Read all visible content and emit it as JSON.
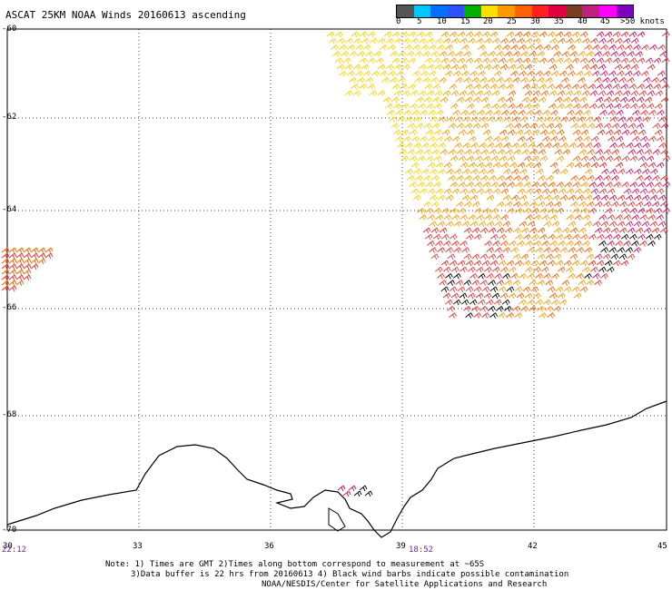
{
  "title": "ASCAT 25KM NOAA Winds 20160613 ascending",
  "legend": {
    "labels": [
      "0",
      "5",
      "10",
      "15",
      "20",
      "25",
      "30",
      "35",
      "40",
      "45",
      ">50 knots"
    ],
    "colors": [
      "#555555",
      "#00c8ff",
      "#0070ff",
      "#3050ff",
      "#00b000",
      "#ffe000",
      "#ff9900",
      "#ff6000",
      "#ff2020",
      "#e00040",
      "#7a3d1e",
      "#c02080",
      "#ff00ff",
      "#8000c0"
    ]
  },
  "lat_labels": [
    "-60",
    "-62",
    "-64",
    "-66",
    "-68",
    "-70"
  ],
  "lon_labels": [
    "30",
    "33",
    "36",
    "39",
    "42",
    "45"
  ],
  "times": [
    "22:12",
    "18:52"
  ],
  "notes": [
    "Note: 1) Times are GMT 2)Times along bottom correspond to measurement at ~65S",
    "3)Data buffer is 22 hrs from 20160613 4) Black wind barbs indicate possible contamination",
    "NOAA/NESDIS/Center for Satellite Applications and Research"
  ],
  "map_data": {
    "lat_range": [
      -70,
      -60
    ],
    "lon_range": [
      30,
      45
    ],
    "grid": true,
    "coastline_icon": "antarctic-coast",
    "barb_color_scale": [
      "#ffd000",
      "#ff9900",
      "#ff6000",
      "#ee3030",
      "#d01060",
      "#000000"
    ]
  }
}
